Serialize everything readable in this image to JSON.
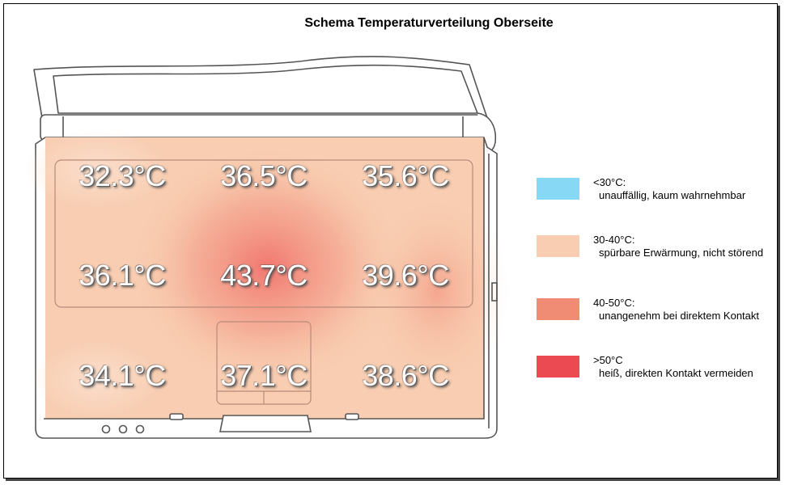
{
  "title": "Schema Temperaturverteilung Oberseite",
  "readings": [
    {
      "value": "32.3°C",
      "row": 0,
      "col": 0
    },
    {
      "value": "36.5°C",
      "row": 0,
      "col": 1
    },
    {
      "value": "35.6°C",
      "row": 0,
      "col": 2
    },
    {
      "value": "36.1°C",
      "row": 1,
      "col": 0
    },
    {
      "value": "43.7°C",
      "row": 1,
      "col": 1
    },
    {
      "value": "39.6°C",
      "row": 1,
      "col": 2
    },
    {
      "value": "34.1°C",
      "row": 2,
      "col": 0
    },
    {
      "value": "37.1°C",
      "row": 2,
      "col": 1
    },
    {
      "value": "38.6°C",
      "row": 2,
      "col": 2
    }
  ],
  "legend": [
    {
      "range": "<30°C:",
      "description": "unauffällig, kaum wahrnehmbar",
      "color": "#87d8f5"
    },
    {
      "range": "30-40°C:",
      "description": "spürbare Erwärmung, nicht störend",
      "color": "#f8cdb1"
    },
    {
      "range": "40-50°C:",
      "description": "unangenehm bei direktem Kontakt",
      "color": "#f08b74"
    },
    {
      "range": ">50°C",
      "description": "heiß, direkten Kontakt vermeiden",
      "color": "#ec4a52"
    }
  ],
  "colors": {
    "base": "#f8cdb1",
    "hotspot": "#ef5b5b",
    "outline": "#555555"
  }
}
